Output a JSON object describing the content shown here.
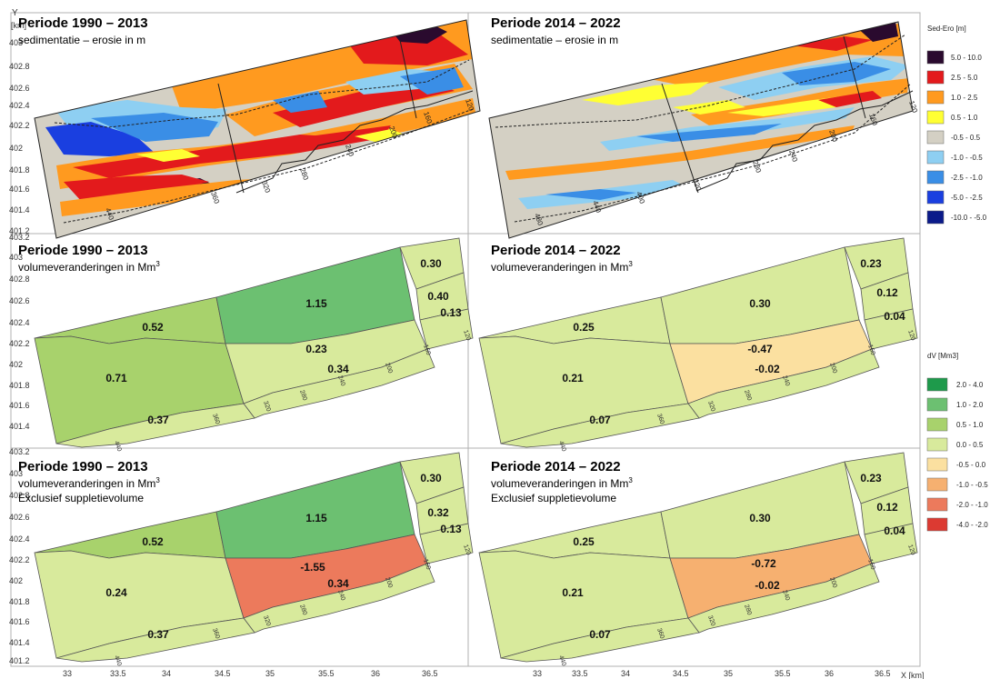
{
  "axes": {
    "y_label": "Y",
    "y_unit": "[km]",
    "x_label": "X",
    "x_unit": "[km]",
    "y_ticks_top": [
      "403",
      "402.8",
      "402.6",
      "402.4",
      "402.2",
      "402",
      "401.8",
      "401.6",
      "401.4",
      "401.2"
    ],
    "y_ticks_lower": [
      "403.2",
      "403",
      "402.8",
      "402.6",
      "402.4",
      "402.2",
      "402",
      "401.8",
      "401.6",
      "401.4",
      "401.2"
    ],
    "x_ticks": [
      "33",
      "33.5",
      "34",
      "34.5",
      "35",
      "35.5",
      "36",
      "36.5"
    ]
  },
  "panels": [
    {
      "title": "Periode 1990 – 2013",
      "sub1": "sedimentatie – erosie in m",
      "sub2": ""
    },
    {
      "title": "Periode 2014 – 2022",
      "sub1": "sedimentatie – erosie in m",
      "sub2": ""
    },
    {
      "title": "Periode 1990 – 2013",
      "sub1": "volumeveranderingen  in Mm",
      "sup": "3",
      "sub2": ""
    },
    {
      "title": "Periode 2014 – 2022",
      "sub1": "volumeveranderingen  in Mm",
      "sup": "3",
      "sub2": ""
    },
    {
      "title": "Periode 1990 – 2013",
      "sub1": "volumeveranderingen  in Mm",
      "sup": "3",
      "sub2": "Exclusief suppletievolume"
    },
    {
      "title": "Periode 2014 – 2022",
      "sub1": "volumeveranderingen  in Mm",
      "sup": "3",
      "sub2": "Exclusief suppletievolume"
    }
  ],
  "chart_data": [
    {
      "type": "heatmap",
      "panel": 0,
      "title": "Periode 1990 – 2013",
      "subtitle": "sedimentatie – erosie in m",
      "legend_title": "Sed-Ero [m]",
      "legend": [
        {
          "label": "5.0 - 10.0",
          "color": "#2a0a2e"
        },
        {
          "label": "2.5 - 5.0",
          "color": "#e31a1c"
        },
        {
          "label": "1.0 - 2.5",
          "color": "#ff9a1f"
        },
        {
          "label": "0.5 - 1.0",
          "color": "#ffff33"
        },
        {
          "label": "-0.5 - 0.5",
          "color": "#d4d0c4"
        },
        {
          "label": "-1.0 - -0.5",
          "color": "#8ecff2"
        },
        {
          "label": "-2.5 - -1.0",
          "color": "#3a8ee6"
        },
        {
          "label": "-5.0 - -2.5",
          "color": "#1a3fe0"
        },
        {
          "label": "-10.0 - -5.0",
          "color": "#0a1a8a"
        }
      ],
      "transect_labels": [
        "440",
        "360",
        "320",
        "280",
        "240",
        "200",
        "160",
        "120"
      ]
    },
    {
      "type": "heatmap",
      "panel": 1,
      "title": "Periode 2014 – 2022",
      "subtitle": "sedimentatie – erosie in m",
      "transect_labels": [
        "480",
        "440",
        "400",
        "320",
        "280",
        "240",
        "200",
        "160",
        "120"
      ]
    },
    {
      "type": "map",
      "panel": 2,
      "title": "Periode 1990 – 2013",
      "subtitle": "volumeveranderingen in Mm3",
      "legend_title": "dV [Mm3]",
      "legend": [
        {
          "label": "2.0 - 4.0",
          "color": "#1e9a4b"
        },
        {
          "label": "1.0 - 2.0",
          "color": "#6cc071"
        },
        {
          "label": "0.5 - 1.0",
          "color": "#a8d26c"
        },
        {
          "label": "0.0 - 0.5",
          "color": "#d8ea9c"
        },
        {
          "label": "-0.5 - 0.0",
          "color": "#fbe0a0"
        },
        {
          "label": "-1.0 - -0.5",
          "color": "#f6b070"
        },
        {
          "label": "-2.0 - -1.0",
          "color": "#ec7a5c"
        },
        {
          "label": "-4.0 - -2.0",
          "color": "#dc3a32"
        }
      ],
      "values": [
        "0.52",
        "1.15",
        "0.30",
        "0.40",
        "0.13",
        "0.71",
        "0.23",
        "0.34",
        "0.37"
      ]
    },
    {
      "type": "map",
      "panel": 3,
      "title": "Periode 2014 – 2022",
      "subtitle": "volumeveranderingen in Mm3",
      "values": [
        "0.25",
        "0.30",
        "0.23",
        "0.12",
        "0.04",
        "0.21",
        "-0.47",
        "-0.02",
        "0.07"
      ]
    },
    {
      "type": "map",
      "panel": 4,
      "title": "Periode 1990 – 2013",
      "subtitle": "volumeveranderingen in Mm3 Exclusief suppletievolume",
      "values": [
        "0.52",
        "1.15",
        "0.30",
        "0.32",
        "0.13",
        "0.24",
        "-1.55",
        "0.34",
        "0.37"
      ]
    },
    {
      "type": "map",
      "panel": 5,
      "title": "Periode 2014 – 2022",
      "subtitle": "volumeveranderingen in Mm3 Exclusief suppletievolume",
      "values": [
        "0.25",
        "0.30",
        "0.23",
        "0.12",
        "0.04",
        "0.21",
        "-0.72",
        "-0.02",
        "0.07"
      ]
    }
  ]
}
